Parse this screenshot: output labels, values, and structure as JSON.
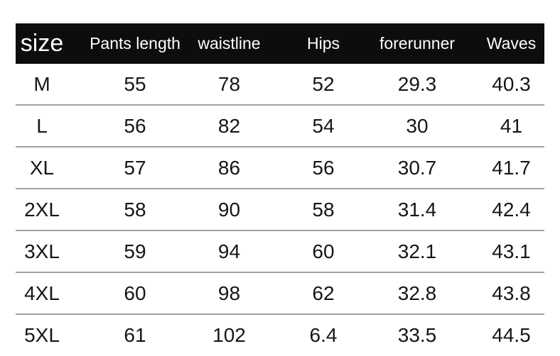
{
  "chart_data": {
    "type": "table",
    "title": "",
    "columns": [
      "size",
      "Pants length",
      "waistline",
      "Hips",
      "forerunner",
      "Waves"
    ],
    "rows": [
      [
        "M",
        "55",
        "78",
        "52",
        "29.3",
        "40.3"
      ],
      [
        "L",
        "56",
        "82",
        "54",
        "30",
        "41"
      ],
      [
        "XL",
        "57",
        "86",
        "56",
        "30.7",
        "41.7"
      ],
      [
        "2XL",
        "58",
        "90",
        "58",
        "31.4",
        "42.4"
      ],
      [
        "3XL",
        "59",
        "94",
        "60",
        "32.1",
        "43.1"
      ],
      [
        "4XL",
        "60",
        "98",
        "62",
        "32.8",
        "43.8"
      ],
      [
        "5XL",
        "61",
        "102",
        "6.4",
        "33.5",
        "44.5"
      ]
    ]
  },
  "styles": {
    "header_bg": "#0d0d0d",
    "header_text": "#ffffff",
    "body_text": "#161616",
    "divider": "#a0a0a0",
    "page_bg": "#ffffff"
  }
}
